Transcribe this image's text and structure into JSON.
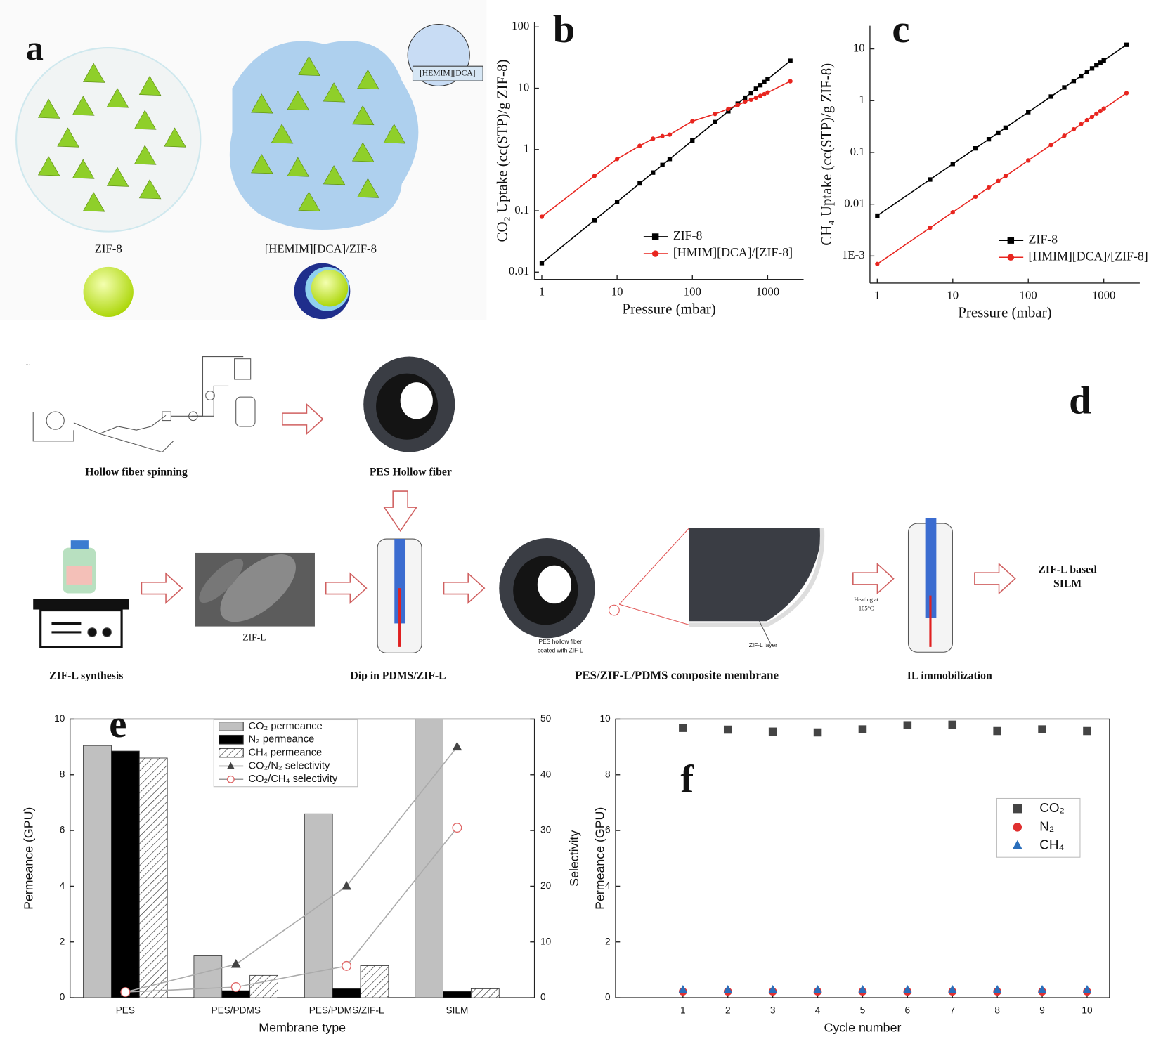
{
  "panel_a": {
    "label": "a",
    "inset": "[HEMIM][DCA]",
    "captions": [
      "ZIF-8",
      "[HEMIM][DCA]/ZIF-8"
    ]
  },
  "panel_d": {
    "label": "d",
    "spinning": "Hollow fiber spinning",
    "fiber": "PES Hollow fiber",
    "sem": "ZIF-L",
    "synthesis": "ZIF-L synthesis",
    "dip": "Dip in PDMS/ZIF-L",
    "coated": [
      "PES hollow fiber",
      "coated with ZIF-L"
    ],
    "layer": "ZIF-L layer",
    "composite": "PES/ZIF-L/PDMS composite membrane",
    "heating": [
      "Heating at",
      "105°C"
    ],
    "immobilization": "IL immobilization",
    "result": [
      "ZIF-L based",
      "SILM"
    ]
  },
  "chart_data": [
    {
      "type": "line",
      "panel": "b",
      "xlabel": "Pressure (mbar)",
      "ylabel": "CO₂ Uptake (cc(STP)/g ZIF-8)",
      "xscale": "log",
      "yscale": "log",
      "xlim": [
        0.8,
        3000
      ],
      "ylim": [
        0.0076,
        120
      ],
      "xticks": [
        1,
        10,
        100,
        1000
      ],
      "yticks": [
        0.01,
        0.1,
        1,
        10,
        100
      ],
      "x": [
        1,
        5,
        10,
        20,
        30,
        40,
        50,
        100,
        200,
        300,
        400,
        500,
        600,
        700,
        800,
        900,
        1000,
        2000
      ],
      "series": [
        {
          "name": "ZIF-8",
          "color": "#000000",
          "marker": "square",
          "values": [
            0.014,
            0.07,
            0.14,
            0.28,
            0.42,
            0.56,
            0.7,
            1.4,
            2.8,
            4.2,
            5.6,
            7,
            8.4,
            9.8,
            11.2,
            12.6,
            14,
            28
          ]
        },
        {
          "name": "[HMIM][DCA]/[ZIF-8]",
          "color": "#e8251f",
          "marker": "circle",
          "values": [
            0.08,
            0.37,
            0.7,
            1.15,
            1.5,
            1.65,
            1.75,
            2.9,
            3.8,
            4.6,
            5.3,
            6,
            6.5,
            7,
            7.5,
            8,
            8.5,
            13
          ]
        }
      ]
    },
    {
      "type": "line",
      "panel": "c",
      "xlabel": "Pressure (mbar)",
      "ylabel": "CH₄ Uptake (cc(STP)/g ZIF-8)",
      "xscale": "log",
      "yscale": "log",
      "xlim": [
        0.8,
        3000
      ],
      "ylim": [
        0.0003,
        28
      ],
      "xticks": [
        1,
        10,
        100,
        1000
      ],
      "yticks": [
        {
          "value": 0.001,
          "label": "1E-3"
        },
        0.01,
        0.1,
        1,
        10
      ],
      "x": [
        1,
        5,
        10,
        20,
        30,
        40,
        50,
        100,
        200,
        300,
        400,
        500,
        600,
        700,
        800,
        900,
        1000,
        2000
      ],
      "series": [
        {
          "name": "ZIF-8",
          "color": "#000000",
          "marker": "square",
          "values": [
            0.006,
            0.03,
            0.06,
            0.12,
            0.18,
            0.24,
            0.3,
            0.6,
            1.2,
            1.8,
            2.4,
            3,
            3.6,
            4.2,
            4.8,
            5.4,
            6,
            12
          ]
        },
        {
          "name": "[HMIM][DCA]/[ZIF-8]",
          "color": "#e8251f",
          "marker": "circle",
          "values": [
            0.0007,
            0.0035,
            0.007,
            0.014,
            0.021,
            0.028,
            0.035,
            0.07,
            0.14,
            0.21,
            0.28,
            0.35,
            0.42,
            0.49,
            0.56,
            0.63,
            0.7,
            1.4
          ]
        }
      ]
    },
    {
      "type": "bar",
      "panel": "e",
      "xlabel": "Membrane type",
      "ylabel": "Permeance (GPU)",
      "y2label": "Selectivity",
      "categories": [
        "PES",
        "PES/PDMS",
        "PES/PDMS/ZIF-L",
        "SILM"
      ],
      "ylim": [
        0,
        10
      ],
      "yticks": [
        0,
        2,
        4,
        6,
        8,
        10
      ],
      "y2lim": [
        0,
        50
      ],
      "y2ticks": [
        0,
        10,
        20,
        30,
        40,
        50
      ],
      "series": [
        {
          "name": "CO₂ permeance",
          "color": "#c0c0c0",
          "values": [
            9.05,
            1.5,
            6.6,
            10
          ]
        },
        {
          "name": "N₂ permeance",
          "color": "#000000",
          "values": [
            8.85,
            0.25,
            0.32,
            0.22
          ]
        },
        {
          "name": "CH₄ permeance",
          "color": "#ffffff",
          "pattern": "hatch",
          "values": [
            8.6,
            0.8,
            1.15,
            0.32
          ]
        },
        {
          "name": "CO₂/N₂ selectivity",
          "type": "line",
          "axis": "y2",
          "marker": "triangle",
          "color": "#444444",
          "values": [
            1,
            6,
            20,
            45
          ]
        },
        {
          "name": "CO₂/CH₄ selectivity",
          "type": "line",
          "axis": "y2",
          "marker": "circle-open",
          "color": "#e06666",
          "values": [
            1,
            1.9,
            5.7,
            30.5
          ]
        }
      ]
    },
    {
      "type": "scatter",
      "panel": "f",
      "xlabel": "Cycle number",
      "ylabel": "Permeance (GPU)",
      "xlim": [
        -0.5,
        10.5
      ],
      "ylim": [
        0,
        10
      ],
      "xticks": [
        1,
        2,
        3,
        4,
        5,
        6,
        7,
        8,
        9,
        10
      ],
      "yticks": [
        0,
        2,
        4,
        6,
        8,
        10
      ],
      "x": [
        1,
        2,
        3,
        4,
        5,
        6,
        7,
        8,
        9,
        10
      ],
      "series": [
        {
          "name": "CO₂",
          "color": "#444444",
          "marker": "square",
          "values": [
            9.68,
            9.62,
            9.55,
            9.52,
            9.63,
            9.78,
            9.8,
            9.57,
            9.63,
            9.57
          ]
        },
        {
          "name": "N₂",
          "color": "#e03030",
          "marker": "circle",
          "values": [
            0.22,
            0.22,
            0.22,
            0.22,
            0.22,
            0.22,
            0.22,
            0.22,
            0.22,
            0.22
          ]
        },
        {
          "name": "CH₄",
          "color": "#2a6ebb",
          "marker": "triangle",
          "values": [
            0.28,
            0.28,
            0.28,
            0.28,
            0.28,
            0.28,
            0.28,
            0.28,
            0.28,
            0.28
          ]
        }
      ]
    }
  ]
}
